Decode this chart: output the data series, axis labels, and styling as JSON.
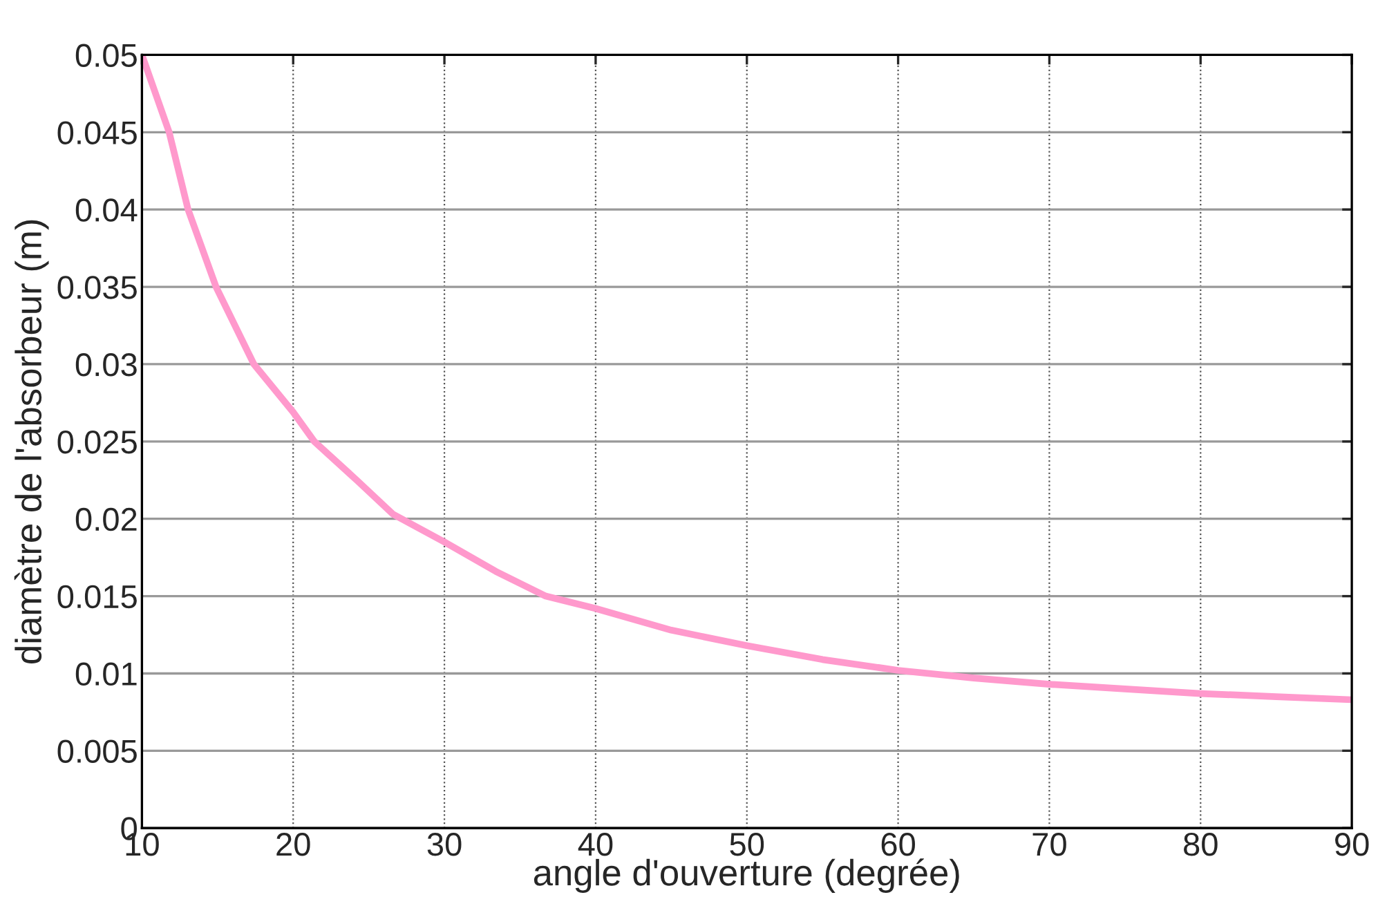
{
  "chart_data": {
    "type": "line",
    "xlabel": "angle d'ouverture (degrée)",
    "ylabel": "diamètre de l'absorbeur (m)",
    "x": [
      10,
      11.8,
      13.05,
      14.9,
      17.4,
      20,
      21.4,
      24.2,
      26.6,
      30,
      33.4,
      36.7,
      40,
      45,
      50,
      55,
      60,
      65,
      70,
      75,
      80,
      85,
      90
    ],
    "series": [
      {
        "color": "#ff99cc",
        "values": [
          0.05,
          0.045,
          0.04,
          0.035,
          0.03,
          0.0269,
          0.025,
          0.0225,
          0.0203,
          0.0185,
          0.0166,
          0.015,
          0.0142,
          0.0128,
          0.0118,
          0.0109,
          0.0102,
          0.0097,
          0.0093,
          0.009,
          0.0087,
          0.0085,
          0.0083
        ]
      }
    ],
    "xlim": [
      10,
      90
    ],
    "xticks": [
      10,
      20,
      30,
      40,
      50,
      60,
      70,
      80,
      90
    ],
    "ylim": [
      0,
      0.05
    ],
    "yticks": [
      0,
      0.005,
      0.01,
      0.015,
      0.02,
      0.025,
      0.03,
      0.035,
      0.04,
      0.045,
      0.05
    ],
    "grid": true,
    "line_style": "solid"
  }
}
